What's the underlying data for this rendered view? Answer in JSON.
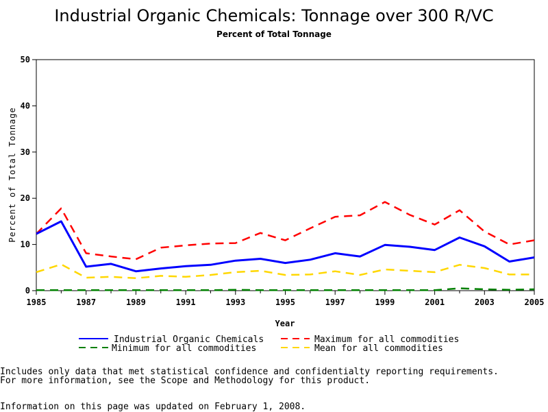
{
  "chart_data": {
    "type": "line",
    "title": "Industrial Organic Chemicals: Tonnage over 300 R/VC",
    "subtitle": "Percent of Total Tonnage",
    "xlabel": "Year",
    "ylabel": "Percent of Total Tonnage",
    "xlim": [
      1985,
      2005
    ],
    "ylim": [
      0,
      50
    ],
    "x_ticks": [
      "1985",
      "1987",
      "1989",
      "1991",
      "1993",
      "1995",
      "1997",
      "1999",
      "2001",
      "2003",
      "2005"
    ],
    "y_ticks": [
      "0",
      "10",
      "20",
      "30",
      "40",
      "50"
    ],
    "grid": false,
    "legend_position": "bottom",
    "x": [
      1985,
      1986,
      1987,
      1988,
      1989,
      1990,
      1991,
      1992,
      1993,
      1994,
      1995,
      1996,
      1997,
      1998,
      1999,
      2000,
      2001,
      2002,
      2003,
      2004,
      2005
    ],
    "series": [
      {
        "name": "Industrial Organic Chemicals",
        "color": "#0000ff",
        "style": "solid",
        "values": [
          12.3,
          15.0,
          5.2,
          5.8,
          4.2,
          4.8,
          5.3,
          5.6,
          6.5,
          6.9,
          6.0,
          6.7,
          8.1,
          7.4,
          9.9,
          9.5,
          8.8,
          11.5,
          9.6,
          6.3,
          7.2
        ]
      },
      {
        "name": "Maximum for all commodities",
        "color": "#ff0000",
        "style": "dashed",
        "values": [
          12.3,
          17.8,
          8.1,
          7.4,
          6.8,
          9.3,
          9.8,
          10.2,
          10.3,
          12.5,
          10.9,
          13.5,
          16.0,
          16.3,
          19.2,
          16.4,
          14.3,
          17.4,
          12.8,
          10.0,
          10.9
        ]
      },
      {
        "name": "Minimum for all commodities",
        "color": "#008000",
        "style": "dashed",
        "values": [
          0.1,
          0.1,
          0.1,
          0.1,
          0.1,
          0.1,
          0.1,
          0.1,
          0.2,
          0.1,
          0.1,
          0.1,
          0.1,
          0.1,
          0.1,
          0.1,
          0.1,
          0.5,
          0.3,
          0.2,
          0.3
        ]
      },
      {
        "name": "Mean for all commodities",
        "color": "#ffd700",
        "style": "dashed",
        "values": [
          4.0,
          5.7,
          2.8,
          3.0,
          2.7,
          3.2,
          3.0,
          3.4,
          4.0,
          4.3,
          3.4,
          3.5,
          4.2,
          3.4,
          4.6,
          4.3,
          4.0,
          5.6,
          4.9,
          3.5,
          3.5
        ]
      }
    ]
  },
  "footnotes": {
    "line1": "Includes only data that met statistical confidence and confidentialty reporting requirements.",
    "line2": "For more information, see the Scope and Methodology for this product.",
    "line3": "Information on this page was updated on February 1, 2008."
  }
}
